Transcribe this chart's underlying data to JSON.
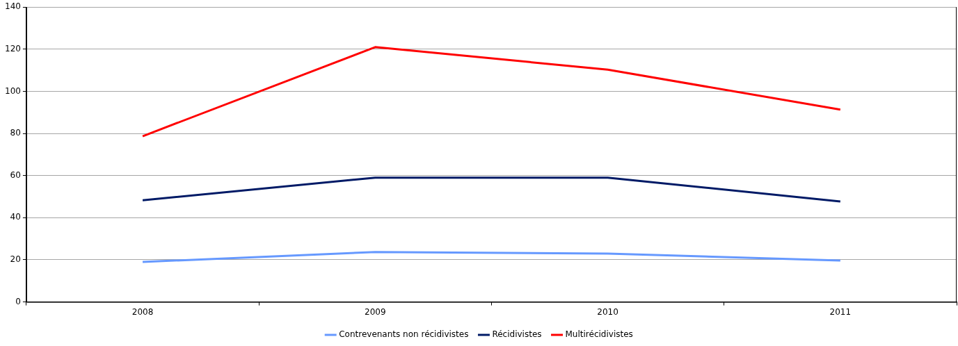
{
  "chart_data": {
    "type": "line",
    "categories": [
      "2008",
      "2009",
      "2010",
      "2011"
    ],
    "series": [
      {
        "name": "Contrevenants non récidivistes",
        "color": "#6699ff",
        "values": [
          19,
          23.7,
          23,
          19.7
        ]
      },
      {
        "name": "Récidivistes",
        "color": "#001a66",
        "values": [
          48.3,
          59,
          59,
          47.7
        ]
      },
      {
        "name": "Multirécidivistes",
        "color": "#ff0000",
        "values": [
          78.7,
          121,
          110.3,
          91.3
        ]
      }
    ],
    "ylim": [
      0,
      140
    ],
    "yticks": [
      0,
      20,
      40,
      60,
      80,
      100,
      120,
      140
    ],
    "grid": "y",
    "legend": "bottom",
    "marker": "none",
    "line_style": "solid"
  }
}
